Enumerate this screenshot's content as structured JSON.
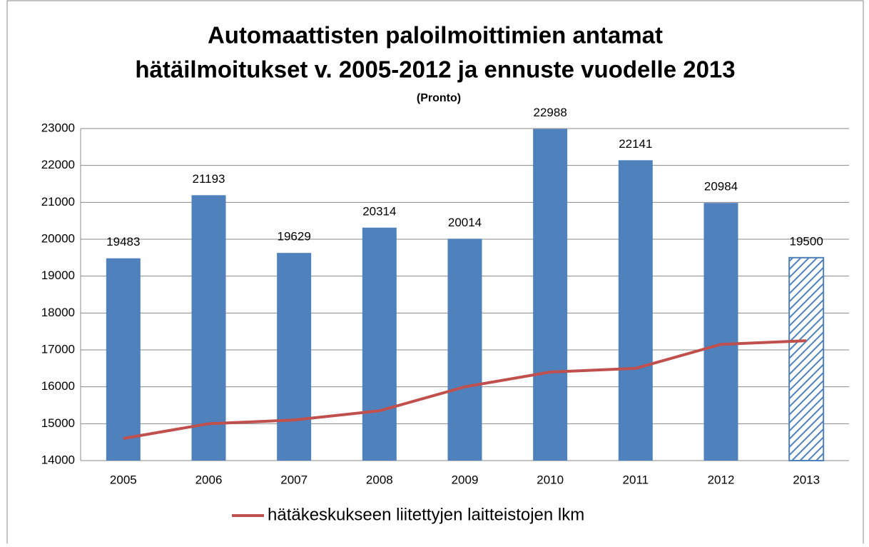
{
  "chart_data": {
    "type": "combo",
    "title": [
      "Automaattisten paloilmoittimien antamat",
      "hätäilmoitukset v. 2005-2012 ja ennuste vuodelle 2013"
    ],
    "subtitle": "(Pronto)",
    "categories": [
      "2005",
      "2006",
      "2007",
      "2008",
      "2009",
      "2010",
      "2011",
      "2012",
      "2013"
    ],
    "series": [
      {
        "type": "bar",
        "color": "#4f81bd",
        "values": [
          19483,
          21193,
          19629,
          20314,
          20014,
          22988,
          22141,
          20984,
          19500
        ],
        "hatched": [
          false,
          false,
          false,
          false,
          false,
          false,
          false,
          false,
          true
        ]
      },
      {
        "type": "line",
        "name": "hätäkeskukseen liitettyjen laitteistojen lkm",
        "color": "#c0504d",
        "values": [
          14600,
          15000,
          15100,
          15350,
          16000,
          16400,
          16500,
          17150,
          17250
        ]
      }
    ],
    "ylim": [
      14000,
      23000
    ],
    "yticks": [
      14000,
      15000,
      16000,
      17000,
      18000,
      19000,
      20000,
      21000,
      22000,
      23000
    ],
    "grid": true,
    "legend": "bottom"
  }
}
